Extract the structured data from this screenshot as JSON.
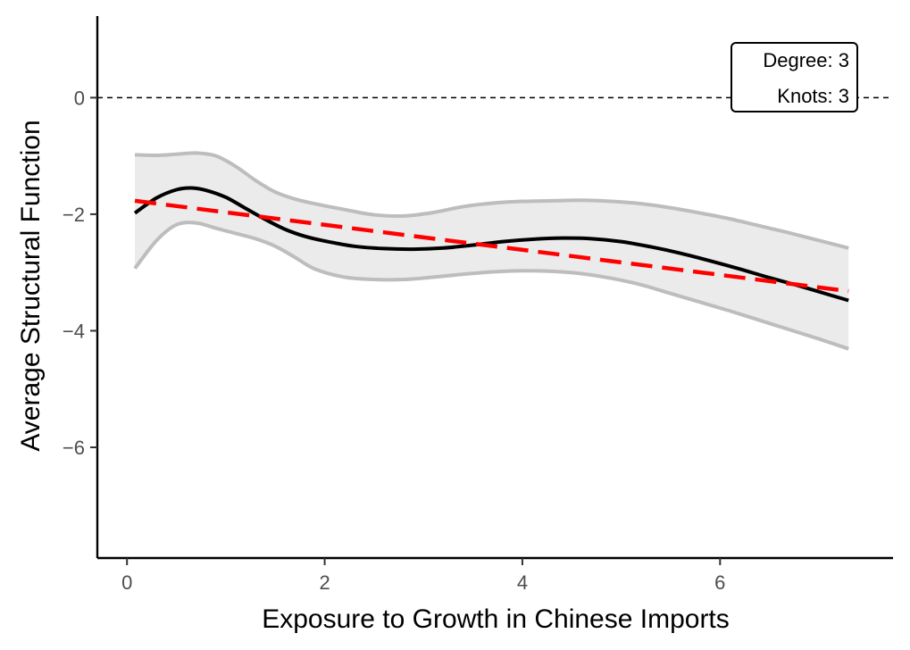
{
  "chart_data": {
    "type": "line",
    "title": "",
    "xlabel": "Exposure to Growth in Chinese Imports",
    "ylabel": "Average Structural Function",
    "xlim": [
      -0.3,
      7.75
    ],
    "ylim": [
      -7.9,
      1.4
    ],
    "x_ticks": [
      0,
      2,
      4,
      6
    ],
    "y_ticks": [
      0,
      -2,
      -4,
      -6
    ],
    "x_tick_labels": [
      "0",
      "2",
      "4",
      "6"
    ],
    "y_tick_labels": [
      "0",
      "−2",
      "−4",
      "−6"
    ],
    "grid": false,
    "reference_line": {
      "y": 0,
      "style": "dashed",
      "color": "#000000"
    },
    "annotation": {
      "lines": [
        "Degree: 3",
        "Knots: 3"
      ],
      "placement": "top-right"
    },
    "series": [
      {
        "kind": "band",
        "color": "#bdbdbd",
        "fill": "#ebebeb",
        "x": [
          0.08,
          0.3,
          0.5,
          0.7,
          0.9,
          1.1,
          1.3,
          1.5,
          1.7,
          1.9,
          2.2,
          2.5,
          2.8,
          3.1,
          3.4,
          3.7,
          4.0,
          4.3,
          4.6,
          4.9,
          5.2,
          5.5,
          5.8,
          6.1,
          6.4,
          6.7,
          7.0,
          7.3
        ],
        "upper": [
          -0.98,
          -0.99,
          -0.97,
          -0.95,
          -1.0,
          -1.18,
          -1.42,
          -1.62,
          -1.74,
          -1.82,
          -1.92,
          -2.01,
          -2.03,
          -1.97,
          -1.87,
          -1.81,
          -1.78,
          -1.77,
          -1.76,
          -1.78,
          -1.82,
          -1.89,
          -1.98,
          -2.08,
          -2.2,
          -2.32,
          -2.45,
          -2.58
        ],
        "lower": [
          -2.93,
          -2.45,
          -2.18,
          -2.15,
          -2.24,
          -2.33,
          -2.42,
          -2.55,
          -2.74,
          -2.94,
          -3.08,
          -3.12,
          -3.12,
          -3.08,
          -3.03,
          -2.99,
          -2.97,
          -2.98,
          -3.02,
          -3.1,
          -3.21,
          -3.36,
          -3.51,
          -3.66,
          -3.82,
          -3.98,
          -4.14,
          -4.31
        ]
      },
      {
        "kind": "line",
        "color": "#000000",
        "style": "solid",
        "x": [
          0.08,
          0.3,
          0.5,
          0.65,
          0.8,
          1.0,
          1.2,
          1.4,
          1.6,
          1.8,
          2.0,
          2.3,
          2.6,
          2.9,
          3.2,
          3.5,
          3.8,
          4.1,
          4.4,
          4.7,
          5.0,
          5.3,
          5.6,
          5.9,
          6.2,
          6.5,
          6.8,
          7.1,
          7.3
        ],
        "y": [
          -1.98,
          -1.72,
          -1.58,
          -1.55,
          -1.59,
          -1.71,
          -1.9,
          -2.09,
          -2.26,
          -2.38,
          -2.46,
          -2.55,
          -2.59,
          -2.6,
          -2.58,
          -2.53,
          -2.47,
          -2.43,
          -2.41,
          -2.42,
          -2.47,
          -2.56,
          -2.67,
          -2.8,
          -2.94,
          -3.09,
          -3.23,
          -3.38,
          -3.48
        ]
      },
      {
        "kind": "line",
        "color": "#ff0000",
        "style": "dashed",
        "x": [
          0.08,
          7.3
        ],
        "y": [
          -1.77,
          -3.32
        ]
      }
    ]
  }
}
